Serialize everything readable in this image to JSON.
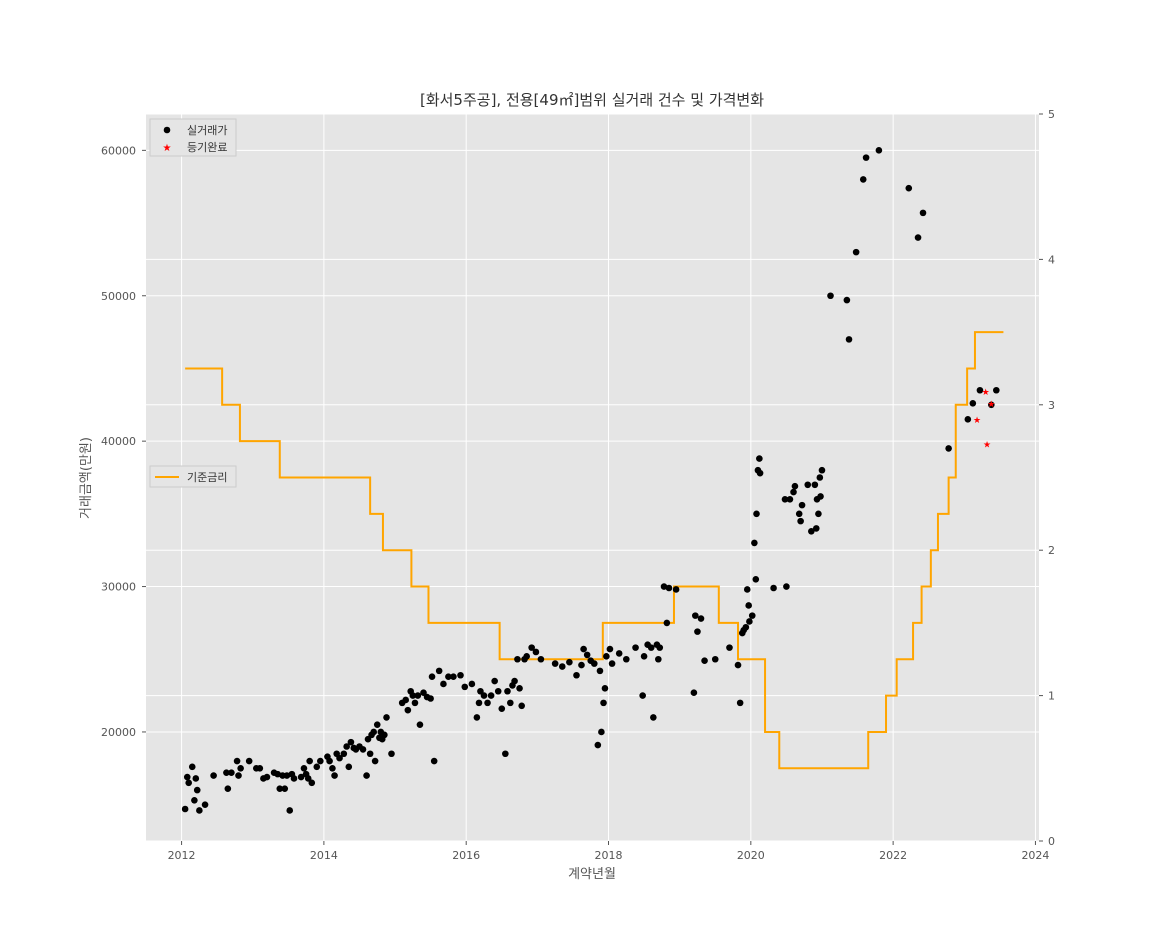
{
  "chart_data": {
    "type": "scatter",
    "title": "[화서5주공], 전용[49㎡]범위 실거래 건수 및 가격변화",
    "xlabel": "계약년월",
    "ylabel": "거래금액(만원)",
    "xlim": [
      2011.5,
      2024.05
    ],
    "ylim": [
      12500,
      62500
    ],
    "y2lim": [
      0,
      5
    ],
    "x_ticks": [
      "2012",
      "2014",
      "2016",
      "2018",
      "2020",
      "2022",
      "2024"
    ],
    "y_ticks": [
      "20000",
      "30000",
      "40000",
      "50000",
      "60000"
    ],
    "y2_ticks": [
      "0",
      "1",
      "2",
      "3",
      "4",
      "5"
    ],
    "grid": true,
    "legend_placement": "top-left",
    "colors": {
      "trades": "#000000",
      "registered": "#ff0000",
      "rate": "#ffa500",
      "plot_bg": "#e5e5e5"
    },
    "series": [
      {
        "name": "실거래가",
        "marker": "circle",
        "points": [
          [
            2012.05,
            14700
          ],
          [
            2012.08,
            16900
          ],
          [
            2012.1,
            16500
          ],
          [
            2012.15,
            17600
          ],
          [
            2012.18,
            15300
          ],
          [
            2012.2,
            16800
          ],
          [
            2012.22,
            16000
          ],
          [
            2012.25,
            14600
          ],
          [
            2012.33,
            15000
          ],
          [
            2012.45,
            17000
          ],
          [
            2012.63,
            17200
          ],
          [
            2012.65,
            16100
          ],
          [
            2012.7,
            17200
          ],
          [
            2012.78,
            18000
          ],
          [
            2012.8,
            17000
          ],
          [
            2012.83,
            17500
          ],
          [
            2012.95,
            18000
          ],
          [
            2013.05,
            17500
          ],
          [
            2013.1,
            17500
          ],
          [
            2013.15,
            16800
          ],
          [
            2013.2,
            16900
          ],
          [
            2013.3,
            17200
          ],
          [
            2013.35,
            17100
          ],
          [
            2013.38,
            16100
          ],
          [
            2013.42,
            17000
          ],
          [
            2013.45,
            16100
          ],
          [
            2013.48,
            17000
          ],
          [
            2013.52,
            14600
          ],
          [
            2013.55,
            17100
          ],
          [
            2013.58,
            16800
          ],
          [
            2013.68,
            16900
          ],
          [
            2013.72,
            17500
          ],
          [
            2013.75,
            17100
          ],
          [
            2013.78,
            16800
          ],
          [
            2013.8,
            18000
          ],
          [
            2013.83,
            16500
          ],
          [
            2013.9,
            17600
          ],
          [
            2013.95,
            18000
          ],
          [
            2014.05,
            18300
          ],
          [
            2014.08,
            18000
          ],
          [
            2014.12,
            17500
          ],
          [
            2014.15,
            17000
          ],
          [
            2014.18,
            18500
          ],
          [
            2014.22,
            18200
          ],
          [
            2014.28,
            18500
          ],
          [
            2014.32,
            19000
          ],
          [
            2014.35,
            17600
          ],
          [
            2014.38,
            19300
          ],
          [
            2014.42,
            18900
          ],
          [
            2014.45,
            18800
          ],
          [
            2014.5,
            19000
          ],
          [
            2014.55,
            18800
          ],
          [
            2014.6,
            17000
          ],
          [
            2014.62,
            19500
          ],
          [
            2014.65,
            18500
          ],
          [
            2014.67,
            19800
          ],
          [
            2014.7,
            20000
          ],
          [
            2014.72,
            18000
          ],
          [
            2014.75,
            20500
          ],
          [
            2014.78,
            19600
          ],
          [
            2014.8,
            20000
          ],
          [
            2014.82,
            19500
          ],
          [
            2014.85,
            19800
          ],
          [
            2014.88,
            21000
          ],
          [
            2014.95,
            18500
          ],
          [
            2015.1,
            22000
          ],
          [
            2015.15,
            22200
          ],
          [
            2015.18,
            21500
          ],
          [
            2015.22,
            22800
          ],
          [
            2015.25,
            22500
          ],
          [
            2015.28,
            22000
          ],
          [
            2015.32,
            22500
          ],
          [
            2015.35,
            20500
          ],
          [
            2015.4,
            22700
          ],
          [
            2015.45,
            22400
          ],
          [
            2015.5,
            22300
          ],
          [
            2015.52,
            23800
          ],
          [
            2015.55,
            18000
          ],
          [
            2015.62,
            24200
          ],
          [
            2015.68,
            23300
          ],
          [
            2015.75,
            23800
          ],
          [
            2015.82,
            23800
          ],
          [
            2015.92,
            23900
          ],
          [
            2015.98,
            23100
          ],
          [
            2016.08,
            23300
          ],
          [
            2016.15,
            21000
          ],
          [
            2016.18,
            22000
          ],
          [
            2016.2,
            22800
          ],
          [
            2016.25,
            22500
          ],
          [
            2016.3,
            22000
          ],
          [
            2016.35,
            22500
          ],
          [
            2016.4,
            23500
          ],
          [
            2016.45,
            22800
          ],
          [
            2016.5,
            21600
          ],
          [
            2016.55,
            18500
          ],
          [
            2016.58,
            22800
          ],
          [
            2016.62,
            22000
          ],
          [
            2016.65,
            23200
          ],
          [
            2016.68,
            23500
          ],
          [
            2016.72,
            25000
          ],
          [
            2016.75,
            23000
          ],
          [
            2016.78,
            21800
          ],
          [
            2016.82,
            25000
          ],
          [
            2016.85,
            25200
          ],
          [
            2016.92,
            25800
          ],
          [
            2016.98,
            25500
          ],
          [
            2017.05,
            25000
          ],
          [
            2017.25,
            24700
          ],
          [
            2017.35,
            24500
          ],
          [
            2017.45,
            24800
          ],
          [
            2017.55,
            23900
          ],
          [
            2017.62,
            24600
          ],
          [
            2017.65,
            25700
          ],
          [
            2017.7,
            25300
          ],
          [
            2017.75,
            24900
          ],
          [
            2017.8,
            24700
          ],
          [
            2017.85,
            19100
          ],
          [
            2017.88,
            24200
          ],
          [
            2017.9,
            20000
          ],
          [
            2017.93,
            22000
          ],
          [
            2017.95,
            23000
          ],
          [
            2017.97,
            25200
          ],
          [
            2018.02,
            25700
          ],
          [
            2018.05,
            24700
          ],
          [
            2018.15,
            25400
          ],
          [
            2018.25,
            25000
          ],
          [
            2018.38,
            25800
          ],
          [
            2018.48,
            22500
          ],
          [
            2018.5,
            25200
          ],
          [
            2018.55,
            26000
          ],
          [
            2018.6,
            25800
          ],
          [
            2018.63,
            21000
          ],
          [
            2018.68,
            26000
          ],
          [
            2018.7,
            25000
          ],
          [
            2018.72,
            25800
          ],
          [
            2018.78,
            30000
          ],
          [
            2018.82,
            27500
          ],
          [
            2018.85,
            29900
          ],
          [
            2018.95,
            29800
          ],
          [
            2019.2,
            22700
          ],
          [
            2019.22,
            28000
          ],
          [
            2019.25,
            26900
          ],
          [
            2019.3,
            27800
          ],
          [
            2019.35,
            24900
          ],
          [
            2019.5,
            25000
          ],
          [
            2019.7,
            25800
          ],
          [
            2019.82,
            24600
          ],
          [
            2019.85,
            22000
          ],
          [
            2019.88,
            26800
          ],
          [
            2019.9,
            27000
          ],
          [
            2019.93,
            27200
          ],
          [
            2019.95,
            29800
          ],
          [
            2019.97,
            28700
          ],
          [
            2019.98,
            27600
          ],
          [
            2020.02,
            28000
          ],
          [
            2020.05,
            33000
          ],
          [
            2020.07,
            30500
          ],
          [
            2020.08,
            35000
          ],
          [
            2020.1,
            38000
          ],
          [
            2020.12,
            38800
          ],
          [
            2020.13,
            37800
          ],
          [
            2020.32,
            29900
          ],
          [
            2020.48,
            36000
          ],
          [
            2020.5,
            30000
          ],
          [
            2020.55,
            36000
          ],
          [
            2020.6,
            36500
          ],
          [
            2020.62,
            36900
          ],
          [
            2020.68,
            35000
          ],
          [
            2020.7,
            34500
          ],
          [
            2020.72,
            35600
          ],
          [
            2020.8,
            37000
          ],
          [
            2020.85,
            33800
          ],
          [
            2020.9,
            37000
          ],
          [
            2020.92,
            34000
          ],
          [
            2020.93,
            36000
          ],
          [
            2020.95,
            35000
          ],
          [
            2020.97,
            37500
          ],
          [
            2020.98,
            36200
          ],
          [
            2021.0,
            38000
          ],
          [
            2021.12,
            50000
          ],
          [
            2021.35,
            49700
          ],
          [
            2021.38,
            47000
          ],
          [
            2021.48,
            53000
          ],
          [
            2021.58,
            58000
          ],
          [
            2021.62,
            59500
          ],
          [
            2021.8,
            60000
          ],
          [
            2022.22,
            57400
          ],
          [
            2022.35,
            54000
          ],
          [
            2022.42,
            55700
          ],
          [
            2022.78,
            39500
          ],
          [
            2023.05,
            41500
          ],
          [
            2023.12,
            42600
          ],
          [
            2023.22,
            43500
          ],
          [
            2023.38,
            42500
          ],
          [
            2023.45,
            43500
          ]
        ]
      },
      {
        "name": "등기완료",
        "marker": "star",
        "points": [
          [
            2023.18,
            41500
          ],
          [
            2023.3,
            43400
          ],
          [
            2023.32,
            39800
          ],
          [
            2023.38,
            42600
          ]
        ]
      },
      {
        "name": "기준금리",
        "axis": "right",
        "style": "step",
        "points": [
          [
            2012.05,
            3.25
          ],
          [
            2012.57,
            3.0
          ],
          [
            2012.82,
            2.75
          ],
          [
            2013.38,
            2.5
          ],
          [
            2014.65,
            2.25
          ],
          [
            2014.83,
            2.0
          ],
          [
            2015.23,
            1.75
          ],
          [
            2015.47,
            1.5
          ],
          [
            2016.47,
            1.25
          ],
          [
            2017.92,
            1.5
          ],
          [
            2018.92,
            1.75
          ],
          [
            2019.55,
            1.5
          ],
          [
            2019.82,
            1.25
          ],
          [
            2020.2,
            0.75
          ],
          [
            2020.4,
            0.5
          ],
          [
            2021.65,
            0.75
          ],
          [
            2021.9,
            1.0
          ],
          [
            2022.05,
            1.25
          ],
          [
            2022.28,
            1.5
          ],
          [
            2022.4,
            1.75
          ],
          [
            2022.53,
            2.0
          ],
          [
            2022.63,
            2.25
          ],
          [
            2022.78,
            2.5
          ],
          [
            2022.88,
            3.0
          ],
          [
            2023.04,
            3.25
          ],
          [
            2023.15,
            3.5
          ],
          [
            2023.55,
            3.5
          ]
        ]
      }
    ]
  }
}
